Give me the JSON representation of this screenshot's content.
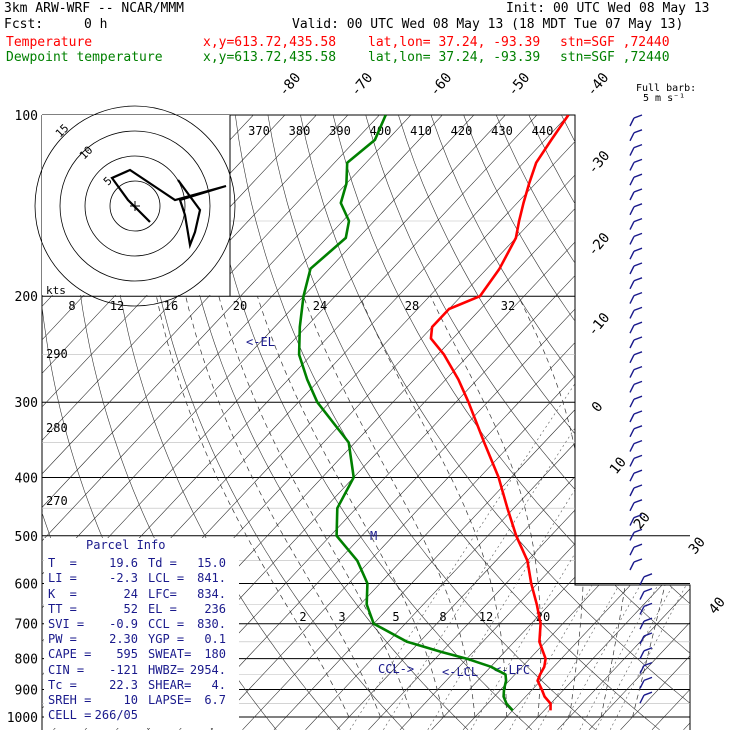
{
  "header": {
    "model": "3km ARW-WRF -- NCAR/MMM",
    "init": "Init: 00 UTC Wed 08 May 13",
    "fcst_label": "Fcst:",
    "fcst_value": "0 h",
    "valid": "Valid: 00 UTC Wed 08 May 13 (18 MDT Tue 07 May 13)",
    "temp_line": {
      "name": "Temperature",
      "xy": "x,y=613.72,435.58",
      "latlon": "lat,lon= 37.24, -93.39",
      "stn": "stn=SGF ,72440",
      "color": "#ff0000"
    },
    "dew_line": {
      "name": "Dewpoint temperature",
      "xy": "x,y=613.72,435.58",
      "latlon": "lat,lon= 37.24, -93.39",
      "stn": "stn=SGF ,72440",
      "color": "#008000"
    }
  },
  "barb_legend": {
    "line1": "Full barb:",
    "line2": "5 m s⁻¹"
  },
  "hodograph": {
    "units": "kts",
    "ring_labels": [
      "5",
      "10",
      "15"
    ]
  },
  "parcel_info": {
    "title": "Parcel Info",
    "rows": [
      [
        "T  =",
        "19.6",
        "Td =",
        "15.0"
      ],
      [
        "LI =",
        "-2.3",
        "LCL =",
        "841."
      ],
      [
        "K  =",
        "24",
        "LFC=",
        "834."
      ],
      [
        "TT =",
        "52",
        "EL =",
        "236"
      ],
      [
        "SVI =",
        "-0.9",
        "CCL =",
        "830."
      ],
      [
        "PW =",
        "2.30",
        "YGP =",
        "0.1"
      ],
      [
        "CAPE =",
        "595",
        "SWEAT=",
        "180"
      ],
      [
        "CIN =",
        "-121",
        "HWBZ=",
        "2954."
      ],
      [
        "Tc =",
        "22.3",
        "SHEAR=",
        "4."
      ],
      [
        "SREH =",
        "10",
        "LAPSE=",
        "6.7"
      ],
      [
        "CELL =",
        "266/05",
        "",
        ""
      ]
    ]
  },
  "annotations": {
    "el": "<-EL",
    "lcl": "<-LCL",
    "lfc": "<-LFC",
    "ccl": "CCL->",
    "m": "M"
  },
  "chart_data": {
    "type": "line",
    "title": "",
    "ylabel": "",
    "y_scale": "log",
    "ylim": [
      1000,
      100
    ],
    "pressure_ticks": [
      100,
      200,
      300,
      400,
      500,
      600,
      700,
      800,
      900,
      1000
    ],
    "isotherm_labels": [
      -80,
      -70,
      -60,
      -50,
      -40,
      -30,
      -20,
      -10,
      0,
      10,
      20,
      30,
      40
    ],
    "theta_labels": [
      370,
      380,
      390,
      400,
      410,
      420,
      430,
      440
    ],
    "theta_left_labels": [
      290,
      280,
      270
    ],
    "mixing_ratio_upper_labels": [
      8,
      12,
      16,
      20,
      24,
      28,
      32
    ],
    "mixing_ratio_lower_labels": [
      2,
      3,
      5,
      8,
      12,
      20
    ],
    "series": [
      {
        "name": "Temperature",
        "color": "#ff0000",
        "p": [
          975,
          950,
          925,
          900,
          870,
          850,
          825,
          800,
          750,
          700,
          650,
          600,
          550,
          500,
          450,
          400,
          350,
          300,
          275,
          250,
          235,
          225,
          210,
          200,
          180,
          160,
          150,
          140,
          130,
          120,
          110,
          100
        ],
        "t": [
          21,
          20,
          18,
          16.5,
          14.5,
          14,
          13.5,
          12.5,
          9,
          6.5,
          3,
          -1,
          -5,
          -10.5,
          -16,
          -22,
          -29.5,
          -38,
          -43,
          -49,
          -53.5,
          -55,
          -55,
          -52,
          -53,
          -55,
          -57,
          -59,
          -61,
          -63,
          -64,
          -65
        ]
      },
      {
        "name": "Dewpoint temperature",
        "color": "#008000",
        "p": [
          975,
          950,
          925,
          900,
          870,
          850,
          825,
          800,
          780,
          750,
          700,
          650,
          600,
          550,
          500,
          450,
          400,
          350,
          300,
          275,
          250,
          225,
          200,
          180,
          160,
          150,
          140,
          130,
          120,
          110,
          100
        ],
        "t": [
          15,
          13,
          11.5,
          10.5,
          9.5,
          8.5,
          5,
          0,
          -5,
          -12,
          -20,
          -24,
          -27,
          -32,
          -39,
          -43,
          -45,
          -51,
          -62,
          -67,
          -72,
          -76,
          -80,
          -83,
          -82,
          -84,
          -88,
          -90,
          -93,
          -92,
          -94
        ]
      }
    ]
  }
}
